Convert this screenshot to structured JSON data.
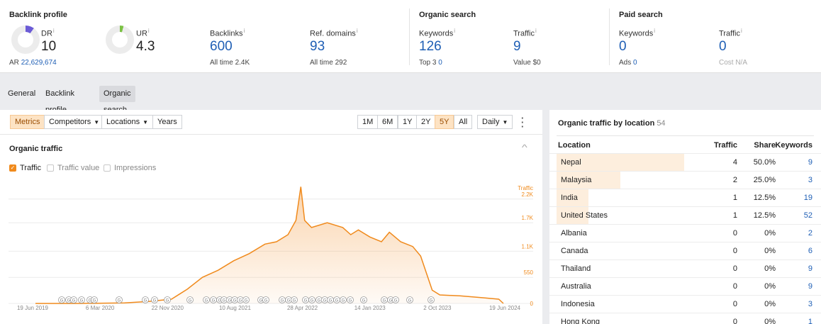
{
  "backlink_profile": {
    "title": "Backlink profile",
    "dr": {
      "label": "DR",
      "info": "i",
      "value": "10",
      "fill_percent": 10
    },
    "ar": {
      "label": "AR",
      "value": "22,629,674"
    },
    "ur": {
      "label": "UR",
      "info": "i",
      "value": "4.3",
      "fill_percent": 4.3
    },
    "backlinks": {
      "label": "Backlinks",
      "info": "i",
      "value": "600",
      "sub_label": "All time",
      "sub_value": "2.4K"
    },
    "ref_domains": {
      "label": "Ref. domains",
      "info": "i",
      "value": "93",
      "sub_label": "All time",
      "sub_value": "292"
    }
  },
  "organic_search": {
    "title": "Organic search",
    "keywords": {
      "label": "Keywords",
      "info": "i",
      "value": "126",
      "sub_label": "Top 3",
      "sub_value": "0"
    },
    "traffic": {
      "label": "Traffic",
      "info": "i",
      "value": "9",
      "sub": "Value $0"
    }
  },
  "paid_search": {
    "title": "Paid search",
    "keywords": {
      "label": "Keywords",
      "info": "i",
      "value": "0",
      "sub_label": "Ads",
      "sub_value": "0"
    },
    "traffic": {
      "label": "Traffic",
      "info": "i",
      "value": "0",
      "sub": "Cost N/A"
    }
  },
  "tabs": [
    {
      "label": "General",
      "active": false
    },
    {
      "label": "Backlink profile",
      "active": false
    },
    {
      "label": "Organic search",
      "active": true
    }
  ],
  "toolbar": {
    "metrics": "Metrics",
    "competitors": "Competitors",
    "locations": "Locations",
    "years": "Years",
    "ranges": [
      "1M",
      "6M",
      "1Y",
      "2Y",
      "5Y",
      "All"
    ],
    "active_range": "5Y",
    "interval": "Daily",
    "more_icon": "more-vertical-icon"
  },
  "organic_traffic": {
    "title": "Organic traffic",
    "collapse_icon": "chevron-up-icon",
    "checkboxes": [
      {
        "label": "Traffic",
        "checked": true
      },
      {
        "label": "Traffic value",
        "checked": false
      },
      {
        "label": "Impressions",
        "checked": false
      }
    ]
  },
  "colors": {
    "accent": "#f08a1c",
    "link": "#1f5fb5",
    "dr_donut": "#6b5bd6",
    "ur_donut": "#7ac143",
    "bar_fill": "#fdeedd"
  },
  "chart_data": {
    "type": "area",
    "title": "Organic traffic",
    "ylabel": "Traffic",
    "y_ticks": [
      "0",
      "550",
      "1.1K",
      "1.7K",
      "2.2K"
    ],
    "y_tick_values": [
      0,
      550,
      1100,
      1700,
      2200
    ],
    "ylim": [
      0,
      2600
    ],
    "x_ticks": [
      "19 Jun 2019",
      "6 Mar 2020",
      "22 Nov 2020",
      "10 Aug 2021",
      "28 Apr 2022",
      "14 Jan 2023",
      "2 Oct 2023",
      "19 Jun 2024"
    ],
    "x": [
      "2019-06-19",
      "2019-12-01",
      "2020-06-01",
      "2020-09-01",
      "2020-12-01",
      "2021-02-01",
      "2021-04-01",
      "2021-06-01",
      "2021-08-01",
      "2021-10-01",
      "2021-12-01",
      "2022-01-15",
      "2022-03-01",
      "2022-04-01",
      "2022-04-20",
      "2022-05-05",
      "2022-06-01",
      "2022-08-01",
      "2022-10-01",
      "2022-11-01",
      "2022-12-01",
      "2023-01-15",
      "2023-03-01",
      "2023-04-01",
      "2023-05-15",
      "2023-07-01",
      "2023-08-01",
      "2023-09-15",
      "2023-10-15",
      "2024-01-01",
      "2024-04-01",
      "2024-06-01",
      "2024-06-19"
    ],
    "series": [
      {
        "name": "Traffic",
        "values": [
          0,
          0,
          10,
          40,
          90,
          300,
          550,
          700,
          900,
          1050,
          1250,
          1300,
          1450,
          1750,
          2460,
          1750,
          1600,
          1700,
          1600,
          1450,
          1550,
          1400,
          1300,
          1500,
          1300,
          1200,
          1000,
          280,
          180,
          160,
          120,
          90,
          0
        ]
      }
    ],
    "annotation_markers": 38,
    "annotation_marker_label": "G"
  },
  "location_table": {
    "title": "Organic traffic by location",
    "count": "54",
    "columns": [
      "Location",
      "Traffic",
      "Share",
      "Keywords"
    ],
    "rows": [
      {
        "location": "Nepal",
        "traffic": "4",
        "share": "50.0%",
        "keywords": "9",
        "share_value": 50
      },
      {
        "location": "Malaysia",
        "traffic": "2",
        "share": "25.0%",
        "keywords": "3",
        "share_value": 25
      },
      {
        "location": "India",
        "traffic": "1",
        "share": "12.5%",
        "keywords": "19",
        "share_value": 12.5
      },
      {
        "location": "United States",
        "traffic": "1",
        "share": "12.5%",
        "keywords": "52",
        "share_value": 12.5
      },
      {
        "location": "Albania",
        "traffic": "0",
        "share": "0%",
        "keywords": "2",
        "share_value": 0
      },
      {
        "location": "Canada",
        "traffic": "0",
        "share": "0%",
        "keywords": "6",
        "share_value": 0
      },
      {
        "location": "Thailand",
        "traffic": "0",
        "share": "0%",
        "keywords": "9",
        "share_value": 0
      },
      {
        "location": "Australia",
        "traffic": "0",
        "share": "0%",
        "keywords": "9",
        "share_value": 0
      },
      {
        "location": "Indonesia",
        "traffic": "0",
        "share": "0%",
        "keywords": "3",
        "share_value": 0
      },
      {
        "location": "Hong Kong",
        "traffic": "0",
        "share": "0%",
        "keywords": "1",
        "share_value": 0
      }
    ]
  }
}
